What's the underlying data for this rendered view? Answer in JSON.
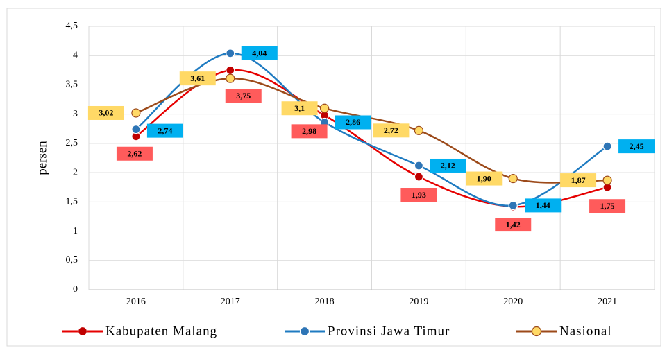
{
  "chart_data": {
    "type": "line",
    "ylabel": "persen",
    "categories": [
      "2016",
      "2017",
      "2018",
      "2019",
      "2020",
      "2021"
    ],
    "ylim": [
      0,
      4.5
    ],
    "yticks": [
      0,
      {
        "value": 0.5,
        "label": "0,5"
      },
      1,
      {
        "value": 1.5,
        "label": "1,5"
      },
      2,
      {
        "value": 2.5,
        "label": "2,5"
      },
      3,
      {
        "value": 3.5,
        "label": "3,5"
      },
      4,
      {
        "value": 4.5,
        "label": "4,5"
      }
    ],
    "grid": true,
    "smooth": true,
    "legend": "bottom",
    "series": [
      {
        "name": "Kabupaten Malang",
        "color": "#e60000",
        "marker_color": "#c00000",
        "label_color": "#ff5b5b",
        "values": [
          2.62,
          3.75,
          2.98,
          1.93,
          1.42,
          1.75
        ],
        "value_labels": [
          "2,62",
          "3,75",
          "2,98",
          "1,93",
          "1,42",
          "1,75"
        ]
      },
      {
        "name": "Provinsi Jawa Timur",
        "color": "#1f7bc1",
        "marker_color": "#2e75b6",
        "label_color": "#00b0f0",
        "values": [
          2.74,
          4.04,
          2.86,
          2.12,
          1.44,
          2.45
        ],
        "value_labels": [
          "2,74",
          "4,04",
          "2,86",
          "2,12",
          "1,44",
          "2,45"
        ]
      },
      {
        "name": "Nasional",
        "color": "#9c4a1a",
        "marker_color": "#ffd966",
        "label_color": "#ffd966",
        "values": [
          3.02,
          3.61,
          3.1,
          2.72,
          1.9,
          1.87
        ],
        "value_labels": [
          "3,02",
          "3,61",
          "3,1",
          "2,72",
          "1,90",
          "1,87"
        ]
      }
    ]
  }
}
